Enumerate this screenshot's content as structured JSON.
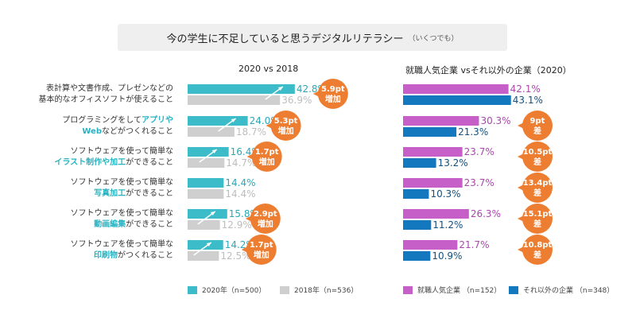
{
  "title": "今の学生に不足していると思うデジタルリテラシー",
  "subtitle": "（いくつでも）",
  "colors": {
    "y2020": "#3bbcc8",
    "y2018": "#cfcfcf",
    "popular": "#c660c8",
    "other": "#1478be",
    "badge": "#ed7d31"
  },
  "categories": [
    {
      "lines": [
        [
          {
            "t": "表計算や文書作成、プレゼンなどの",
            "h": false
          }
        ],
        [
          {
            "t": "基本的なオフィスソフトが使えること",
            "h": false
          }
        ]
      ]
    },
    {
      "lines": [
        [
          {
            "t": "プログラミングをして",
            "h": false
          },
          {
            "t": "アプリや",
            "h": true
          }
        ],
        [
          {
            "t": "Web",
            "h": true
          },
          {
            "t": "などがつくれること",
            "h": false
          }
        ]
      ]
    },
    {
      "lines": [
        [
          {
            "t": "ソフトウェアを使って簡単な",
            "h": false
          }
        ],
        [
          {
            "t": "イラスト制作や加工",
            "h": true
          },
          {
            "t": "ができること",
            "h": false
          }
        ]
      ]
    },
    {
      "lines": [
        [
          {
            "t": "ソフトウェアを使って簡単な",
            "h": false
          }
        ],
        [
          {
            "t": "写真加工",
            "h": true
          },
          {
            "t": "ができること",
            "h": false
          }
        ]
      ]
    },
    {
      "lines": [
        [
          {
            "t": "ソフトウェアを使って簡単な",
            "h": false
          }
        ],
        [
          {
            "t": "動画編集",
            "h": true
          },
          {
            "t": "ができること",
            "h": false
          }
        ]
      ]
    },
    {
      "lines": [
        [
          {
            "t": "ソフトウェアを使って簡単な",
            "h": false
          }
        ],
        [
          {
            "t": "印刷物",
            "h": true
          },
          {
            "t": "がつくれること",
            "h": false
          }
        ]
      ]
    }
  ],
  "chart_data": [
    {
      "type": "bar",
      "orientation": "horizontal",
      "title": "2020 vs 2018",
      "categories": [
        "表計算や文書作成、プレゼンなどの基本的なオフィスソフトが使えること",
        "プログラミングをしてアプリやWebなどがつくれること",
        "ソフトウェアを使って簡単なイラスト制作や加工ができること",
        "ソフトウェアを使って簡単な写真加工ができること",
        "ソフトウェアを使って簡単な動画編集ができること",
        "ソフトウェアを使って簡単な印刷物がつくれること"
      ],
      "series": [
        {
          "name": "2020年（n=500）",
          "values": [
            42.8,
            24.0,
            16.4,
            14.4,
            15.8,
            14.2
          ]
        },
        {
          "name": "2018年（n=536）",
          "values": [
            36.9,
            18.7,
            14.7,
            14.4,
            12.9,
            12.5
          ]
        }
      ],
      "labels": {
        "2020": [
          "42.8%",
          "24.0%",
          "16.4%",
          "14.4%",
          "15.8%",
          "14.2%"
        ],
        "2018": [
          "36.9%",
          "18.7%",
          "14.7%",
          "14.4%",
          "12.9%",
          "12.5%"
        ]
      },
      "annotations": [
        {
          "line1": "5.9pt",
          "line2": "増加"
        },
        {
          "line1": "5.3pt",
          "line2": "増加"
        },
        {
          "line1": "1.7pt",
          "line2": "増加"
        },
        null,
        {
          "line1": "2.9pt",
          "line2": "増加"
        },
        {
          "line1": "1.7pt",
          "line2": "増加"
        }
      ],
      "xlim": [
        0,
        50
      ],
      "legend": "bottom"
    },
    {
      "type": "bar",
      "orientation": "horizontal",
      "title": "就職人気企業 vsそれ以外の企業（2020）",
      "categories": [
        "表計算や文書作成、プレゼンなどの基本的なオフィスソフトが使えること",
        "プログラミングをしてアプリやWebなどがつくれること",
        "ソフトウェアを使って簡単なイラスト制作や加工ができること",
        "ソフトウェアを使って簡単な写真加工ができること",
        "ソフトウェアを使って簡単な動画編集ができること",
        "ソフトウェアを使って簡単な印刷物がつくれること"
      ],
      "series": [
        {
          "name": "就職人気企業 （n=152）",
          "values": [
            42.1,
            30.3,
            23.7,
            23.7,
            26.3,
            21.7
          ]
        },
        {
          "name": "それ以外の企業 （n=348）",
          "values": [
            43.1,
            21.3,
            13.2,
            10.3,
            11.2,
            10.9
          ]
        }
      ],
      "labels": {
        "popular": [
          "42.1%",
          "30.3%",
          "23.7%",
          "23.7%",
          "26.3%",
          "21.7%"
        ],
        "other": [
          "43.1%",
          "21.3%",
          "13.2%",
          "10.3%",
          "11.2%",
          "10.9%"
        ]
      },
      "annotations": [
        null,
        {
          "line1": "9pt",
          "line2": "差"
        },
        {
          "line1": "10.5pt",
          "line2": "差"
        },
        {
          "line1": "13.4pt",
          "line2": "差"
        },
        {
          "line1": "15.1pt",
          "line2": "差"
        },
        {
          "line1": "10.8pt",
          "line2": "差"
        }
      ],
      "xlim": [
        0,
        50
      ],
      "legend": "bottom"
    }
  ]
}
